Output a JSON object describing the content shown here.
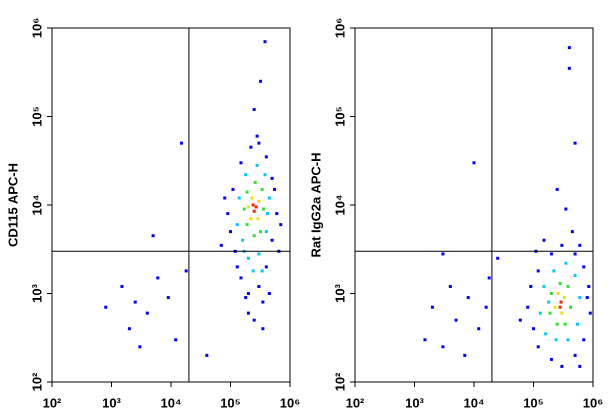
{
  "chart_data": [
    {
      "type": "scatter",
      "ylabel": "CD115 APC-H",
      "log_scale": true,
      "xlim": [
        100,
        1000000
      ],
      "ylim": [
        100,
        1000000
      ],
      "xticks": [
        {
          "value": 100,
          "label": "10²"
        },
        {
          "value": 1000,
          "label": "10³"
        },
        {
          "value": 10000,
          "label": "10⁴"
        },
        {
          "value": 100000,
          "label": "10⁵"
        },
        {
          "value": 1000000,
          "label": "10⁶"
        }
      ],
      "yticks": [
        {
          "value": 100,
          "label": "10²"
        },
        {
          "value": 1000,
          "label": "10³"
        },
        {
          "value": 10000,
          "label": "10⁴"
        },
        {
          "value": 100000,
          "label": "10⁵"
        },
        {
          "value": 1000000,
          "label": "10⁶"
        }
      ],
      "gate": {
        "x": 20000,
        "y": 3000
      },
      "series": [
        {
          "color": "#0000ff",
          "x": [
            120000,
            150000,
            180000,
            200000,
            250000,
            300000,
            400000,
            500000,
            600000,
            500000,
            400000,
            300000,
            220000,
            150000,
            110000,
            90000,
            100000,
            350000,
            450000,
            550000,
            130000,
            280000,
            320000,
            380000,
            250000,
            4000,
            2000,
            6000,
            800,
            3000,
            1500,
            9000,
            12000,
            5000,
            2500,
            15000,
            18000,
            70000,
            80000,
            650000,
            700000,
            200000,
            350000,
            40000
          ],
          "y": [
            3000,
            1500,
            900,
            600,
            500,
            1200,
            2000,
            4000,
            8000,
            20000,
            35000,
            50000,
            45000,
            30000,
            15000,
            8000,
            5000,
            800,
            1000,
            15000,
            2000,
            60000,
            250000,
            700000,
            120000,
            600,
            400,
            1500,
            700,
            250,
            1200,
            900,
            300,
            4500,
            800,
            50000,
            1800,
            3500,
            12000,
            3000,
            6000,
            1000,
            400,
            200
          ]
        },
        {
          "color": "#00c8ff",
          "x": [
            160000,
            200000,
            300000,
            400000,
            450000,
            380000,
            280000,
            180000,
            140000,
            130000,
            240000,
            340000,
            170000,
            420000
          ],
          "y": [
            4000,
            2500,
            2800,
            5000,
            12000,
            22000,
            28000,
            22000,
            12000,
            6000,
            1800,
            1800,
            3000,
            8000
          ]
        },
        {
          "color": "#30e030",
          "x": [
            190000,
            250000,
            320000,
            360000,
            340000,
            260000,
            190000,
            170000
          ],
          "y": [
            6000,
            4500,
            5000,
            9000,
            15000,
            18000,
            14000,
            9000
          ]
        },
        {
          "color": "#f0e000",
          "x": [
            220000,
            290000,
            300000,
            230000,
            200000
          ],
          "y": [
            7000,
            7000,
            11000,
            12000,
            9500
          ]
        },
        {
          "color": "#ff2000",
          "x": [
            250000,
            270000,
            240000
          ],
          "y": [
            8500,
            9500,
            10000
          ]
        }
      ]
    },
    {
      "type": "scatter",
      "ylabel": "Rat IgG2a APC-H",
      "log_scale": true,
      "xlim": [
        100,
        1000000
      ],
      "ylim": [
        100,
        1000000
      ],
      "xticks": [
        {
          "value": 100,
          "label": "10²"
        },
        {
          "value": 1000,
          "label": "10³"
        },
        {
          "value": 10000,
          "label": "10⁴"
        },
        {
          "value": 100000,
          "label": "10⁵"
        },
        {
          "value": 1000000,
          "label": "10⁶"
        }
      ],
      "yticks": [
        {
          "value": 100,
          "label": "10²"
        },
        {
          "value": 1000,
          "label": "10³"
        },
        {
          "value": 10000,
          "label": "10⁴"
        },
        {
          "value": 100000,
          "label": "10⁵"
        },
        {
          "value": 1000000,
          "label": "10⁶"
        }
      ],
      "gate": {
        "x": 20000,
        "y": 3000
      },
      "series": [
        {
          "color": "#0000ff",
          "x": [
            80000,
            100000,
            120000,
            200000,
            300000,
            500000,
            700000,
            900000,
            850000,
            700000,
            500000,
            300000,
            200000,
            120000,
            90000,
            60000,
            450000,
            350000,
            250000,
            400000,
            500000,
            150000,
            600000,
            25000,
            3000,
            5000,
            1500,
            8000,
            4000,
            12000,
            2000,
            7000,
            18000,
            10000,
            3000,
            16000,
            800000,
            110000,
            600000,
            400000
          ],
          "y": [
            700,
            400,
            250,
            180,
            150,
            200,
            300,
            600,
            1200,
            2000,
            2800,
            3500,
            2800,
            1800,
            1200,
            500,
            5000,
            9000,
            15000,
            600000,
            50000,
            4000,
            3500,
            2500,
            250,
            500,
            300,
            900,
            1200,
            400,
            700,
            200,
            1500,
            30000,
            2800,
            700,
            900,
            3000,
            150,
            350000
          ]
        },
        {
          "color": "#00c8ff",
          "x": [
            130000,
            160000,
            240000,
            380000,
            550000,
            600000,
            500000,
            350000,
            220000,
            150000,
            180000
          ],
          "y": [
            600,
            350,
            300,
            300,
            450,
            900,
            1600,
            2200,
            1800,
            1200,
            800
          ]
        },
        {
          "color": "#30e030",
          "x": [
            190000,
            250000,
            340000,
            420000,
            380000,
            280000,
            200000
          ],
          "y": [
            600,
            450,
            450,
            700,
            1200,
            1300,
            1000
          ]
        },
        {
          "color": "#f0e000",
          "x": [
            230000,
            300000,
            330000,
            260000
          ],
          "y": [
            700,
            600,
            900,
            1000
          ]
        },
        {
          "color": "#ff2000",
          "x": [
            280000,
            290000
          ],
          "y": [
            700,
            800
          ]
        }
      ]
    }
  ]
}
